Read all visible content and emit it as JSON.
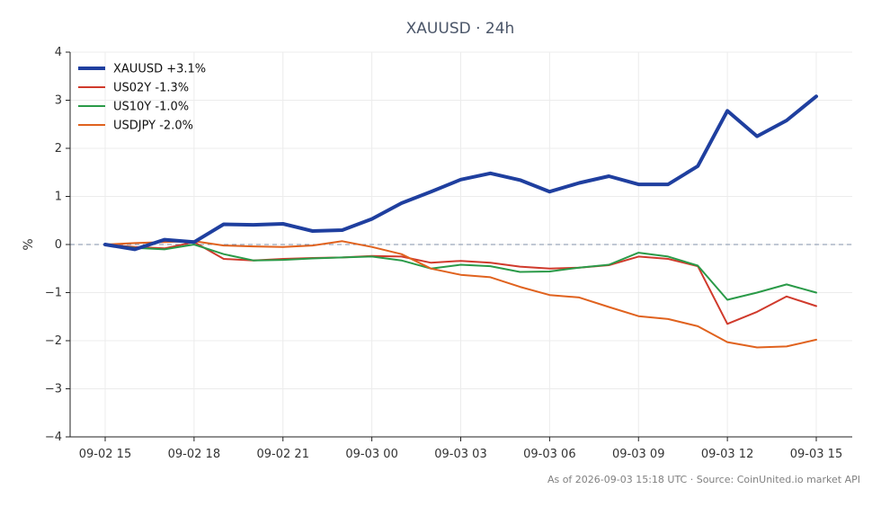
{
  "chart_data": {
    "type": "line",
    "title": "XAUUSD · 24h",
    "ylabel": "%",
    "xlabel": "",
    "ylim": [
      -4,
      4
    ],
    "yticks": [
      -4,
      -3,
      -2,
      -1,
      0,
      1,
      2,
      3,
      4
    ],
    "ytick_labels": [
      "−4",
      "−3",
      "−2",
      "−1",
      "0",
      "1",
      "2",
      "3",
      "4"
    ],
    "xticks": [
      0,
      3,
      6,
      9,
      12,
      15,
      18,
      21,
      24
    ],
    "xtick_labels": [
      "09-02 15",
      "09-02 18",
      "09-02 21",
      "09-03 00",
      "09-03 03",
      "09-03 06",
      "09-03 09",
      "09-03 12",
      "09-03 15"
    ],
    "x_unit": "hours since 09-02 15:00",
    "grid": true,
    "zero_line": true,
    "legend_position": "top-left",
    "x": [
      0,
      1,
      2,
      3,
      4,
      5,
      6,
      7,
      8,
      9,
      10,
      11,
      12,
      13,
      14,
      15,
      16,
      17,
      18,
      19,
      20,
      21,
      22,
      23,
      24
    ],
    "series": [
      {
        "name": "XAUUSD +3.1%",
        "color": "#1f3f9f",
        "width": 4,
        "values": [
          0.0,
          -0.1,
          0.1,
          0.05,
          0.42,
          0.41,
          0.43,
          0.28,
          0.3,
          0.53,
          0.86,
          1.1,
          1.35,
          1.48,
          1.34,
          1.1,
          1.28,
          1.42,
          1.25,
          1.25,
          1.63,
          2.78,
          2.25,
          2.58,
          3.08
        ]
      },
      {
        "name": "US02Y -1.3%",
        "color": "#d03a2c",
        "width": 2,
        "values": [
          0.0,
          -0.05,
          -0.08,
          0.05,
          -0.3,
          -0.33,
          -0.3,
          -0.28,
          -0.27,
          -0.24,
          -0.25,
          -0.38,
          -0.34,
          -0.38,
          -0.46,
          -0.5,
          -0.48,
          -0.43,
          -0.25,
          -0.3,
          -0.45,
          -1.65,
          -1.4,
          -1.08,
          -1.28
        ]
      },
      {
        "name": "US10Y -1.0%",
        "color": "#2a9a48",
        "width": 2,
        "values": [
          0.0,
          -0.07,
          -0.1,
          0.0,
          -0.2,
          -0.33,
          -0.32,
          -0.29,
          -0.27,
          -0.25,
          -0.33,
          -0.5,
          -0.42,
          -0.45,
          -0.57,
          -0.56,
          -0.48,
          -0.42,
          -0.17,
          -0.25,
          -0.44,
          -1.15,
          -1.0,
          -0.83,
          -1.0
        ]
      },
      {
        "name": "USDJPY -2.0%",
        "color": "#e0621e",
        "width": 2,
        "values": [
          0.0,
          0.03,
          0.05,
          0.07,
          -0.02,
          -0.04,
          -0.05,
          -0.02,
          0.07,
          -0.05,
          -0.2,
          -0.5,
          -0.63,
          -0.68,
          -0.88,
          -1.05,
          -1.1,
          -1.3,
          -1.49,
          -1.55,
          -1.7,
          -2.03,
          -2.14,
          -2.12,
          -1.98
        ]
      }
    ],
    "footnote": "As of 2026-09-03 15:18 UTC · Source: CoinUnited.io market API"
  }
}
